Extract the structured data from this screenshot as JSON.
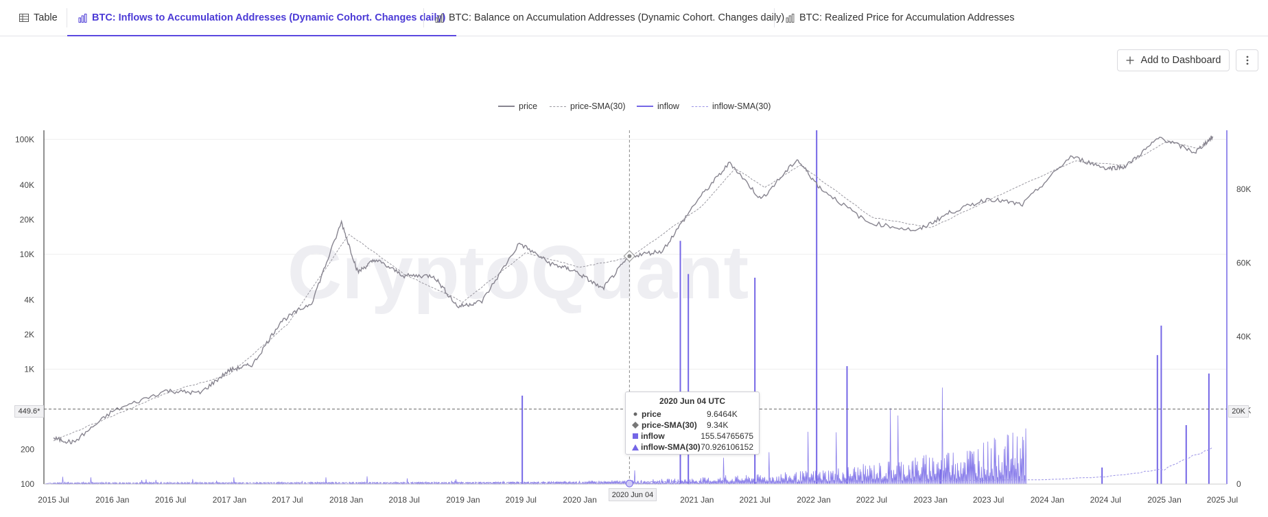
{
  "tabs": [
    {
      "label": "Table",
      "icon": "table-icon",
      "active": false
    },
    {
      "label": "BTC: Inflows to Accumulation Addresses (Dynamic Cohort. Changes daily)",
      "icon": "bar-chart-icon",
      "active": true
    },
    {
      "label": "BTC: Balance on Accumulation Addresses (Dynamic Cohort. Changes daily)",
      "icon": "bar-chart-icon",
      "active": false
    },
    {
      "label": "BTC: Realized Price for Accumulation Addresses",
      "icon": "bar-chart-icon",
      "active": false
    }
  ],
  "toolbar": {
    "add_dashboard_label": "Add to Dashboard",
    "more_icon": "more-vertical-icon"
  },
  "watermark": "CryptoQuant",
  "colors": {
    "price": "#87848f",
    "inflow": "#7466e6",
    "accent": "#4b3ad6",
    "grid": "#eeeeee"
  },
  "legend": [
    {
      "label": "price",
      "style": "solid",
      "color": "#87848f"
    },
    {
      "label": "price-SMA(30)",
      "style": "dashed",
      "color": "#9a98a0"
    },
    {
      "label": "inflow",
      "style": "solid",
      "color": "#7466e6"
    },
    {
      "label": "inflow-SMA(30)",
      "style": "dashed",
      "color": "#9a92e6"
    }
  ],
  "crosshair": {
    "date": "2020 Jun 04",
    "left_value": "449.6*",
    "right_value": "20K"
  },
  "tooltip": {
    "title": "2020 Jun 04 UTC",
    "rows": [
      {
        "label": "price",
        "value": "9.6464K",
        "marker": "circle"
      },
      {
        "label": "price-SMA(30)",
        "value": "9.34K",
        "marker": "diamond"
      },
      {
        "label": "inflow",
        "value": "155.54765675",
        "marker": "square"
      },
      {
        "label": "inflow-SMA(30)",
        "value": "70.926106152",
        "marker": "triangle"
      }
    ]
  },
  "chart_data": {
    "type": "line",
    "x_ticks": [
      "2015 Jul",
      "2016 Jan",
      "2016 Jul",
      "2017 Jan",
      "2017 Jul",
      "2018 Jan",
      "2018 Jul",
      "2019 Jan",
      "2019 Jul",
      "2020 Jan",
      "2021 Jan",
      "2021 Jul",
      "2022 Jan",
      "2022 Jul",
      "2023 Jan",
      "2023 Jul",
      "2024 Jan",
      "2024 Jul",
      "2025 Jan",
      "2025 Jul"
    ],
    "y_left_ticks": [
      "100K",
      "40K",
      "20K",
      "10K",
      "4K",
      "2K",
      "1K",
      "200",
      "100"
    ],
    "y_left_scale": "log",
    "y_left_range": [
      100,
      120000
    ],
    "y_right_ticks": [
      "80K",
      "60K",
      "40K",
      "20K",
      "0"
    ],
    "y_right_range": [
      0,
      96000
    ],
    "series": [
      {
        "name": "price",
        "axis": "left",
        "x": [
          "2015-07-01",
          "2015-09-01",
          "2016-01-01",
          "2016-06-15",
          "2016-10-01",
          "2017-01-01",
          "2017-03-15",
          "2017-06-10",
          "2017-09-15",
          "2017-12-17",
          "2018-02-06",
          "2018-04-01",
          "2018-07-01",
          "2018-10-01",
          "2018-12-15",
          "2019-03-01",
          "2019-06-26",
          "2019-10-01",
          "2019-12-15",
          "2020-03-12",
          "2020-06-04",
          "2020-09-15",
          "2020-12-31",
          "2021-04-14",
          "2021-07-20",
          "2021-11-10",
          "2022-01-20",
          "2022-06-18",
          "2022-11-21",
          "2023-03-01",
          "2023-07-01",
          "2023-10-15",
          "2024-03-14",
          "2024-07-05",
          "2024-09-01",
          "2024-12-17",
          "2025-04-07",
          "2025-06-01"
        ],
        "values": [
          250,
          230,
          430,
          650,
          620,
          980,
          1100,
          2600,
          3800,
          19000,
          7000,
          9000,
          6500,
          6500,
          3500,
          3900,
          12500,
          8300,
          7200,
          5000,
          9646,
          10700,
          29000,
          63000,
          30000,
          67000,
          38000,
          19000,
          16000,
          23000,
          30500,
          27000,
          71000,
          56000,
          58000,
          104000,
          77000,
          106000
        ]
      },
      {
        "name": "price-SMA(30)",
        "axis": "left",
        "x": [
          "2015-07-01",
          "2016-01-01",
          "2016-07-01",
          "2017-01-01",
          "2017-07-01",
          "2018-01-10",
          "2018-07-01",
          "2019-01-01",
          "2019-07-15",
          "2020-01-01",
          "2020-06-04",
          "2021-01-15",
          "2021-05-01",
          "2021-08-01",
          "2021-11-20",
          "2022-07-01",
          "2023-01-01",
          "2023-07-01",
          "2024-03-25",
          "2024-09-01",
          "2025-01-10",
          "2025-04-15",
          "2025-06-01"
        ],
        "values": [
          240,
          390,
          640,
          900,
          2450,
          15000,
          6700,
          3850,
          10300,
          7700,
          9340,
          26000,
          56000,
          38000,
          60000,
          21000,
          17000,
          29500,
          65000,
          59000,
          97000,
          83000,
          103000
        ]
      },
      {
        "name": "inflow",
        "axis": "right",
        "spikes": [
          [
            "2019-07-05",
            24000
          ],
          [
            "2020-11-10",
            66000
          ],
          [
            "2020-12-05",
            57000
          ],
          [
            "2021-07-01",
            56000
          ],
          [
            "2022-01-10",
            96000
          ],
          [
            "2022-04-15",
            32000
          ],
          [
            "2023-02-01",
            4000
          ],
          [
            "2024-06-20",
            4500
          ],
          [
            "2024-12-10",
            35000
          ],
          [
            "2024-12-22",
            43000
          ],
          [
            "2025-03-10",
            16000
          ],
          [
            "2025-05-20",
            30000
          ]
        ]
      },
      {
        "name": "inflow-SMA(30)",
        "axis": "right",
        "x": [
          "2015-07-01",
          "2020-01-01",
          "2021-01-01",
          "2022-01-01",
          "2023-01-01",
          "2024-01-01",
          "2024-07-01",
          "2025-01-01",
          "2025-06-01"
        ],
        "values": [
          300,
          500,
          700,
          800,
          900,
          1200,
          2000,
          4000,
          10000
        ]
      }
    ]
  }
}
